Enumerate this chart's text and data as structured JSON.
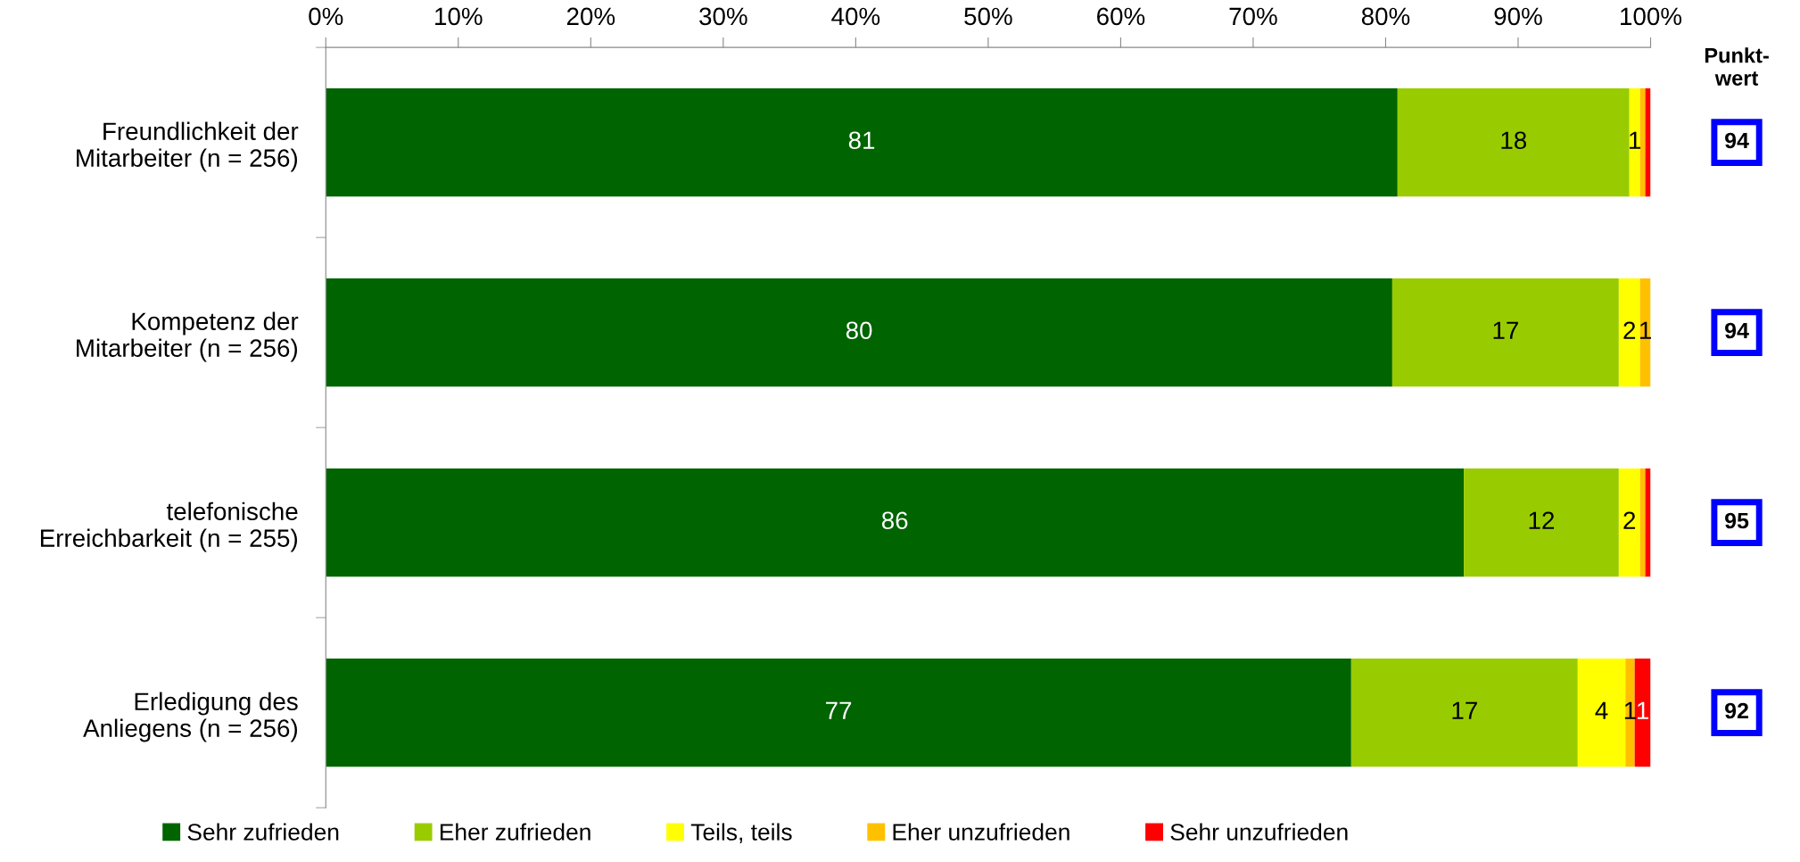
{
  "chart_data": {
    "type": "bar",
    "orientation": "horizontal",
    "stacked": true,
    "categories": [
      "Freundlichkeit der\nMitarbeiter (n = 256)",
      "Kompetenz der\nMitarbeiter (n = 256)",
      "telefonische\nErreichbarkeit (n = 255)",
      "Erledigung des\nAnliegens (n = 256)"
    ],
    "series": [
      {
        "name": "Sehr zufrieden",
        "color": "#006400",
        "values": [
          80.9,
          80.5,
          85.9,
          77.4
        ],
        "value_labels": [
          "81",
          "80",
          "86",
          "77"
        ]
      },
      {
        "name": "Eher zufrieden",
        "color": "#99cc00",
        "values": [
          17.5,
          17.1,
          11.7,
          17.1
        ],
        "value_labels": [
          "18",
          "17",
          "12",
          "17"
        ]
      },
      {
        "name": "Teils, teils",
        "color": "#ffff00",
        "values": [
          0.8,
          1.6,
          1.6,
          3.6
        ],
        "value_labels": [
          "1",
          "2",
          "2",
          "4"
        ]
      },
      {
        "name": "Eher unzufrieden",
        "color": "#ffc000",
        "values": [
          0.4,
          0.8,
          0.4,
          0.7
        ],
        "value_labels": [
          null,
          "1",
          null,
          "1"
        ]
      },
      {
        "name": "Sehr unzufrieden",
        "color": "#ff0000",
        "values": [
          0.4,
          0,
          0.4,
          1.2
        ],
        "value_labels": [
          null,
          null,
          null,
          "1"
        ]
      }
    ],
    "xlim": [
      0,
      100
    ],
    "xticks": [
      {
        "value": 0,
        "label": "0%"
      },
      {
        "value": 10,
        "label": "10%"
      },
      {
        "value": 20,
        "label": "20%"
      },
      {
        "value": 30,
        "label": "30%"
      },
      {
        "value": 40,
        "label": "40%"
      },
      {
        "value": 50,
        "label": "50%"
      },
      {
        "value": 60,
        "label": "60%"
      },
      {
        "value": 70,
        "label": "70%"
      },
      {
        "value": 80,
        "label": "80%"
      },
      {
        "value": 90,
        "label": "90%"
      },
      {
        "value": 100,
        "label": "100%"
      }
    ],
    "annotations": [
      "Punkt-\nwert",
      "94",
      "94",
      "95",
      "92"
    ],
    "legend": "bottom",
    "grid": false
  }
}
